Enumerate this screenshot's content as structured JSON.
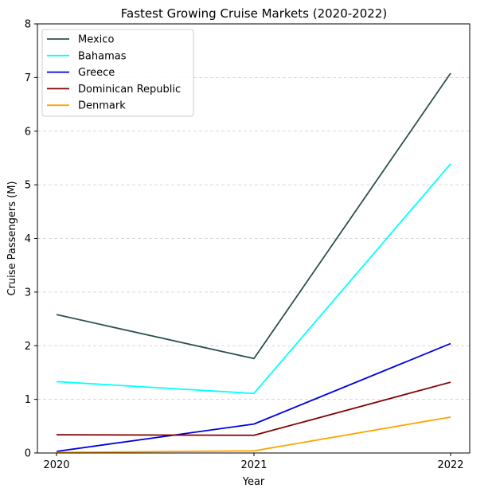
{
  "chart_data": {
    "type": "line",
    "title": "Fastest Growing Cruise Markets (2020-2022)",
    "xlabel": "Year",
    "ylabel": "Cruise Passengers (M)",
    "x": [
      "2020",
      "2021",
      "2022"
    ],
    "ylim": [
      0,
      8
    ],
    "yticks": [
      0,
      1,
      2,
      3,
      4,
      5,
      6,
      7,
      8
    ],
    "grid": "horizontal dashed",
    "legend_position": "top-left",
    "series": [
      {
        "name": "Mexico",
        "color": "#2f4f4f",
        "values": [
          2.58,
          1.76,
          7.08
        ]
      },
      {
        "name": "Bahamas",
        "color": "#00ffff",
        "values": [
          1.33,
          1.11,
          5.39
        ]
      },
      {
        "name": "Greece",
        "color": "#0000e0",
        "values": [
          0.03,
          0.54,
          2.04
        ]
      },
      {
        "name": "Dominican Republic",
        "color": "#800000",
        "values": [
          0.34,
          0.33,
          1.32
        ]
      },
      {
        "name": "Denmark",
        "color": "#ffa500",
        "values": [
          0.01,
          0.04,
          0.67
        ]
      }
    ]
  }
}
